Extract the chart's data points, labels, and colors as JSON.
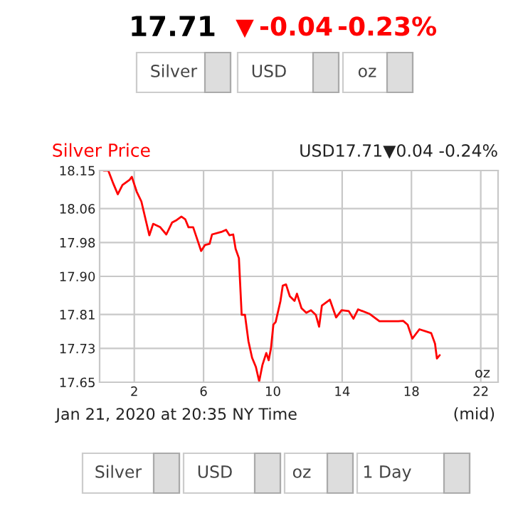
{
  "chart_data": {
    "type": "line",
    "title": "Silver Price",
    "subtitle": "USD17.71▼0.04 -0.24%",
    "xlabel": "Jan 21, 2020 at 20:35 NY Time",
    "annotations": [
      "17.71",
      "▼",
      "-0.04",
      "-0.23%",
      "Silver",
      "USD",
      "oz",
      "oz",
      "(mid)",
      "Silver",
      "USD",
      "oz",
      "1 Day"
    ],
    "xlim": [
      0,
      23
    ],
    "xticks": [
      2,
      6,
      10,
      14,
      18,
      22
    ],
    "ylim": [
      17.65,
      18.15
    ],
    "yticks": [
      {
        "value": 17.65,
        "label": "17.65"
      },
      {
        "value": 17.73,
        "label": "17.73"
      },
      {
        "value": 17.81,
        "label": "17.81"
      },
      {
        "value": 17.9,
        "label": "17.90"
      },
      {
        "value": 17.98,
        "label": "17.98"
      },
      {
        "value": 18.06,
        "label": "18.06"
      },
      {
        "value": 18.15,
        "label": "18.15"
      }
    ],
    "grid": true,
    "marker": "none",
    "line_style": "solid",
    "series": [
      {
        "color": "#ff0000",
        "x": [
          0.23,
          0.5,
          0.78,
          1.05,
          1.32,
          1.73,
          1.86,
          2.14,
          2.41,
          2.68,
          2.87,
          3.09,
          3.5,
          3.85,
          4.18,
          4.45,
          4.72,
          4.94,
          5.13,
          5.4,
          5.59,
          5.86,
          6.08,
          6.35,
          6.49,
          7.03,
          7.3,
          7.5,
          7.71,
          7.85,
          8.04,
          8.2,
          8.39,
          8.59,
          8.8,
          9.02,
          9.21,
          9.4,
          9.62,
          9.76,
          9.89,
          10.03,
          10.16,
          10.44,
          10.57,
          10.76,
          10.98,
          11.25,
          11.39,
          11.65,
          11.93,
          12.2,
          12.48,
          12.67,
          12.83,
          13.29,
          13.65,
          13.97,
          14.38,
          14.65,
          14.92,
          15.6,
          16.15,
          17.24,
          17.52,
          17.78,
          18.05,
          18.46,
          19.14,
          19.36,
          19.47,
          19.63
        ],
        "values": [
          18.15,
          18.15,
          18.12,
          18.094,
          18.116,
          18.128,
          18.135,
          18.1,
          18.077,
          18.03,
          17.997,
          18.024,
          18.016,
          17.999,
          18.027,
          18.033,
          18.041,
          18.035,
          18.016,
          18.016,
          17.993,
          17.96,
          17.974,
          17.977,
          17.999,
          18.005,
          18.01,
          17.997,
          17.999,
          17.965,
          17.943,
          17.809,
          17.809,
          17.747,
          17.708,
          17.686,
          17.652,
          17.691,
          17.719,
          17.702,
          17.73,
          17.786,
          17.792,
          17.842,
          17.878,
          17.881,
          17.853,
          17.842,
          17.859,
          17.825,
          17.814,
          17.82,
          17.809,
          17.781,
          17.831,
          17.845,
          17.803,
          17.82,
          17.818,
          17.8,
          17.822,
          17.811,
          17.794,
          17.794,
          17.795,
          17.786,
          17.753,
          17.775,
          17.766,
          17.741,
          17.706,
          17.714
        ]
      }
    ]
  }
}
